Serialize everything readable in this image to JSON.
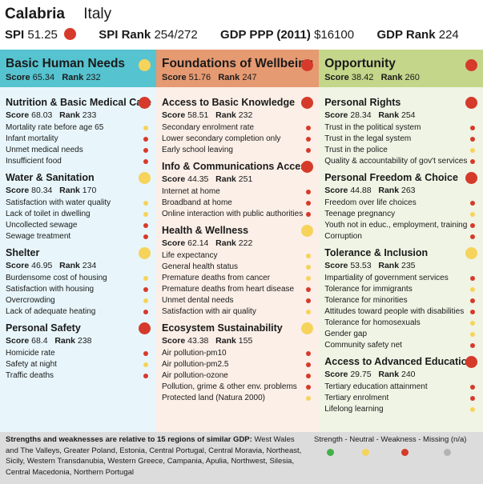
{
  "colors": {
    "strength": "#45b04a",
    "neutral": "#f6d35a",
    "weakness": "#d63a2a",
    "missing": "#b4b4b4"
  },
  "header": {
    "region": "Calabria",
    "country": "Italy",
    "spi_label": "SPI",
    "spi_value": "51.25",
    "spi_status": "weakness",
    "spi_rank_label": "SPI Rank",
    "spi_rank_value": "254/272",
    "gdp_label": "GDP PPP (2011)",
    "gdp_value": "$16100",
    "gdp_rank_label": "GDP Rank",
    "gdp_rank_value": "224"
  },
  "labels": {
    "score": "Score",
    "rank": "Rank"
  },
  "dimensions": [
    {
      "title": "Basic Human Needs",
      "score": "65.34",
      "rank": "232",
      "status": "neutral",
      "components": [
        {
          "title": "Nutrition & Basic Medical Care",
          "score": "68.03",
          "rank": "233",
          "status": "weakness",
          "indicators": [
            {
              "label": "Mortality rate before age 65",
              "status": "neutral"
            },
            {
              "label": "Infant mortality",
              "status": "weakness"
            },
            {
              "label": "Unmet medical needs",
              "status": "weakness"
            },
            {
              "label": "Insufficient food",
              "status": "weakness"
            }
          ]
        },
        {
          "title": "Water & Sanitation",
          "score": "80.34",
          "rank": "170",
          "status": "neutral",
          "indicators": [
            {
              "label": "Satisfaction with water quality",
              "status": "neutral"
            },
            {
              "label": "Lack of toilet in dwelling",
              "status": "neutral"
            },
            {
              "label": "Uncollected sewage",
              "status": "weakness"
            },
            {
              "label": "Sewage treatment",
              "status": "weakness"
            }
          ]
        },
        {
          "title": "Shelter",
          "score": "46.95",
          "rank": "234",
          "status": "neutral",
          "indicators": [
            {
              "label": "Burdensome cost of housing",
              "status": "neutral"
            },
            {
              "label": "Satisfaction with housing",
              "status": "weakness"
            },
            {
              "label": "Overcrowding",
              "status": "neutral"
            },
            {
              "label": "Lack of adequate heating",
              "status": "weakness"
            }
          ]
        },
        {
          "title": "Personal Safety",
          "score": "68.4",
          "rank": "238",
          "status": "weakness",
          "indicators": [
            {
              "label": "Homicide rate",
              "status": "weakness"
            },
            {
              "label": "Safety at night",
              "status": "neutral"
            },
            {
              "label": "Traffic deaths",
              "status": "weakness"
            }
          ]
        }
      ]
    },
    {
      "title": "Foundations of Wellbeing",
      "score": "51.76",
      "rank": "247",
      "status": "weakness",
      "components": [
        {
          "title": "Access to Basic Knowledge",
          "score": "58.51",
          "rank": "232",
          "status": "weakness",
          "indicators": [
            {
              "label": "Secondary enrolment rate",
              "status": "weakness"
            },
            {
              "label": "Lower secondary completion only",
              "status": "weakness"
            },
            {
              "label": "Early school leaving",
              "status": "weakness"
            }
          ]
        },
        {
          "title": "Info & Communications Access",
          "score": "44.35",
          "rank": "251",
          "status": "weakness",
          "indicators": [
            {
              "label": "Internet at home",
              "status": "weakness"
            },
            {
              "label": "Broadband at home",
              "status": "weakness"
            },
            {
              "label": "Online interaction with public authorities",
              "status": "weakness"
            }
          ]
        },
        {
          "title": "Health & Wellness",
          "score": "62.14",
          "rank": "222",
          "status": "neutral",
          "indicators": [
            {
              "label": "Life expectancy",
              "status": "neutral"
            },
            {
              "label": "General health status",
              "status": "neutral"
            },
            {
              "label": "Premature deaths from cancer",
              "status": "neutral"
            },
            {
              "label": "Premature deaths from heart disease",
              "status": "weakness"
            },
            {
              "label": "Unmet dental needs",
              "status": "weakness"
            },
            {
              "label": "Satisfaction with air quality",
              "status": "neutral"
            }
          ]
        },
        {
          "title": "Ecosystem Sustainability",
          "score": "43.38",
          "rank": "155",
          "status": "neutral",
          "indicators": [
            {
              "label": "Air pollution-pm10",
              "status": "weakness"
            },
            {
              "label": "Air pollution-pm2.5",
              "status": "weakness"
            },
            {
              "label": "Air pollution-ozone",
              "status": "weakness"
            },
            {
              "label": "Pollution, grime & other env. problems",
              "status": "weakness"
            },
            {
              "label": "Protected land (Natura 2000)",
              "status": "neutral"
            }
          ]
        }
      ]
    },
    {
      "title": "Opportunity",
      "score": "38.42",
      "rank": "260",
      "status": "weakness",
      "components": [
        {
          "title": "Personal Rights",
          "score": "28.34",
          "rank": "254",
          "status": "weakness",
          "indicators": [
            {
              "label": "Trust in the political system",
              "status": "weakness"
            },
            {
              "label": "Trust in the legal system",
              "status": "weakness"
            },
            {
              "label": "Trust in the police",
              "status": "neutral"
            },
            {
              "label": "Quality & accountability of gov't services",
              "status": "weakness"
            }
          ]
        },
        {
          "title": "Personal Freedom & Choice",
          "score": "44.88",
          "rank": "263",
          "status": "weakness",
          "indicators": [
            {
              "label": "Freedom over life choices",
              "status": "weakness"
            },
            {
              "label": "Teenage pregnancy",
              "status": "neutral"
            },
            {
              "label": "Youth not in educ., employment, training",
              "status": "weakness"
            },
            {
              "label": "Corruption",
              "status": "weakness"
            }
          ]
        },
        {
          "title": "Tolerance & Inclusion",
          "score": "53.53",
          "rank": "235",
          "status": "neutral",
          "indicators": [
            {
              "label": "Impartiality of government services",
              "status": "weakness"
            },
            {
              "label": "Tolerance for immigrants",
              "status": "neutral"
            },
            {
              "label": "Tolerance for minorities",
              "status": "weakness"
            },
            {
              "label": "Attitudes toward people with disabilities",
              "status": "weakness"
            },
            {
              "label": "Tolerance for homosexuals",
              "status": "neutral"
            },
            {
              "label": "Gender gap",
              "status": "neutral"
            },
            {
              "label": "Community safety net",
              "status": "weakness"
            }
          ]
        },
        {
          "title": "Access to Advanced Education",
          "score": "29.75",
          "rank": "240",
          "status": "weakness",
          "indicators": [
            {
              "label": "Tertiary education attainment",
              "status": "weakness"
            },
            {
              "label": "Tertiary enrolment",
              "status": "weakness"
            },
            {
              "label": "Lifelong learning",
              "status": "neutral"
            }
          ]
        }
      ]
    }
  ],
  "footer": {
    "note_bold": "Strengths and weaknesses are relative to 15 regions of similar GDP:",
    "note_regions": " West Wales and The Valleys, Greater Poland, Estonia, Central Portugal, Central Moravia, Northeast, Sicily, Western Transdanubia, Western Greece, Campania, Apulia, Northwest, Silesia, Central Macedonia, Northern Portugal",
    "legend_text": "Strength - Neutral - Weakness - Missing (n/a)"
  }
}
